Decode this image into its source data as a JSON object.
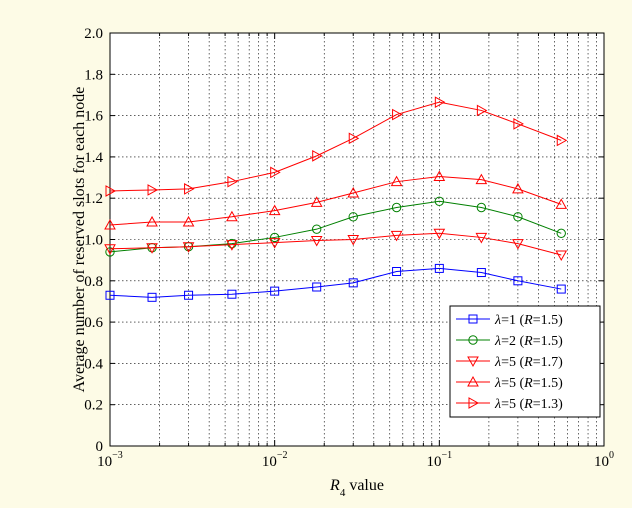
{
  "chart_data": {
    "type": "line",
    "xlabel_var": "R",
    "xlabel_sub": "4",
    "xlabel_rest": " value",
    "ylabel": "Average number of reserved slots for each node",
    "xscale": "log",
    "xlim": [
      0.001,
      1
    ],
    "ylim": [
      0,
      2.0
    ],
    "grid": true,
    "legend_position": "bottom-right",
    "x_ticks": [
      0.001,
      0.01,
      0.1,
      1
    ],
    "x_tick_labels": [
      {
        "base": "10",
        "exp": "−3"
      },
      {
        "base": "10",
        "exp": "−2"
      },
      {
        "base": "10",
        "exp": "−1"
      },
      {
        "base": "10",
        "exp": "0"
      }
    ],
    "y_ticks": [
      0,
      0.2,
      0.4,
      0.6,
      0.8,
      1.0,
      1.2,
      1.4,
      1.6,
      1.8,
      2.0
    ],
    "y_tick_labels": [
      "0",
      "0.2",
      "0.4",
      "0.6",
      "0.8",
      "1.0",
      "1.2",
      "1.4",
      "1.6",
      "1.8",
      "2.0"
    ],
    "x": [
      0.001,
      0.0018,
      0.003,
      0.0055,
      0.01,
      0.018,
      0.03,
      0.055,
      0.1,
      0.18,
      0.3,
      0.55
    ],
    "series": [
      {
        "legend": {
          "lambda": "λ",
          "pre": "=1 (",
          "R": "R",
          "post": "=1.5)"
        },
        "color": "#0000ff",
        "marker": "square",
        "values": [
          0.73,
          0.72,
          0.73,
          0.735,
          0.75,
          0.77,
          0.79,
          0.845,
          0.86,
          0.84,
          0.8,
          0.76
        ]
      },
      {
        "legend": {
          "lambda": "λ",
          "pre": "=2 (",
          "R": "R",
          "post": "=1.5)"
        },
        "color": "#008000",
        "marker": "circle",
        "values": [
          0.94,
          0.96,
          0.965,
          0.98,
          1.01,
          1.05,
          1.11,
          1.155,
          1.185,
          1.155,
          1.11,
          1.03
        ]
      },
      {
        "legend": {
          "lambda": "λ",
          "pre": "=5 (",
          "R": "R",
          "post": "=1.7)"
        },
        "color": "#ff0000",
        "marker": "triangle-down",
        "values": [
          0.955,
          0.96,
          0.965,
          0.975,
          0.985,
          0.995,
          1.0,
          1.02,
          1.03,
          1.01,
          0.98,
          0.925
        ]
      },
      {
        "legend": {
          "lambda": "λ",
          "pre": "=5 (",
          "R": "R",
          "post": "=1.5)"
        },
        "color": "#ff0000",
        "marker": "triangle-up",
        "values": [
          1.07,
          1.085,
          1.085,
          1.11,
          1.14,
          1.18,
          1.225,
          1.28,
          1.305,
          1.29,
          1.245,
          1.17
        ]
      },
      {
        "legend": {
          "lambda": "λ",
          "pre": "=5 (",
          "R": "R",
          "post": "=1.3)"
        },
        "color": "#ff0000",
        "marker": "triangle-right",
        "values": [
          1.235,
          1.24,
          1.245,
          1.28,
          1.325,
          1.405,
          1.49,
          1.605,
          1.665,
          1.625,
          1.56,
          1.48
        ]
      }
    ]
  }
}
